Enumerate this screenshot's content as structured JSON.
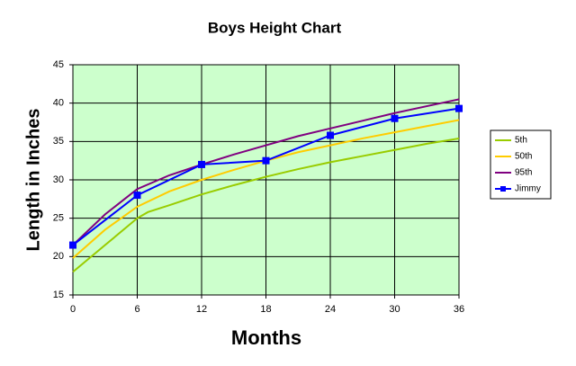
{
  "chart_data": {
    "type": "line",
    "title": "Boys Height Chart",
    "xlabel": "Months",
    "ylabel": "Length in Inches",
    "xlim": [
      0,
      36
    ],
    "xticks": [
      0,
      6,
      12,
      18,
      24,
      30,
      36
    ],
    "ylim": [
      15,
      45
    ],
    "yticks": [
      15,
      20,
      25,
      30,
      35,
      40,
      45
    ],
    "grid": true,
    "legend": "right",
    "background": "#ccffcc",
    "series": [
      {
        "name": "5th",
        "color": "#99cc00",
        "x": [
          0,
          3,
          6,
          7,
          9,
          12,
          15,
          18,
          21,
          24,
          27,
          30,
          33,
          36
        ],
        "values": [
          18,
          21.5,
          25,
          25.8,
          26.7,
          28.1,
          29.3,
          30.4,
          31.4,
          32.3,
          33.1,
          33.9,
          34.7,
          35.4
        ]
      },
      {
        "name": "50th",
        "color": "#ffcc00",
        "x": [
          0,
          3,
          6,
          9,
          12,
          15,
          18,
          21,
          24,
          27,
          30,
          33,
          36
        ],
        "values": [
          19.8,
          23.5,
          26.5,
          28.5,
          30,
          31.3,
          32.5,
          33.6,
          34.5,
          35.4,
          36.2,
          37,
          37.8
        ]
      },
      {
        "name": "95th",
        "color": "#800080",
        "x": [
          0,
          3,
          6,
          9,
          12,
          15,
          18,
          21,
          24,
          27,
          30,
          33,
          36
        ],
        "values": [
          21.5,
          25.5,
          28.8,
          30.6,
          32,
          33.3,
          34.5,
          35.7,
          36.7,
          37.7,
          38.7,
          39.6,
          40.5
        ]
      },
      {
        "name": "Jimmy",
        "color": "#0000ff",
        "marker": "square",
        "x": [
          0,
          6,
          12,
          18,
          24,
          30,
          36
        ],
        "values": [
          21.5,
          28,
          32,
          32.5,
          35.8,
          38,
          39.3
        ]
      }
    ]
  }
}
